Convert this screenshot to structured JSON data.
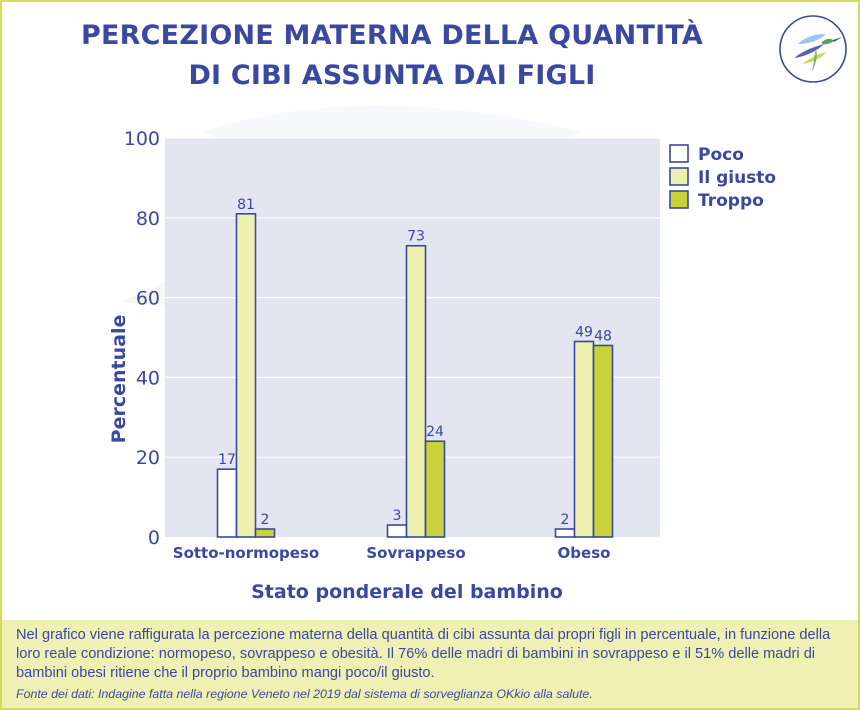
{
  "title": {
    "line1": "PERCEZIONE MATERNA DELLA QUANTITÀ",
    "line2": "DI CIBI ASSUNTA DAI FIGLI"
  },
  "colors": {
    "title": "#3b48a0",
    "frame": "#d4dc5a",
    "plot_bg": "#e3e5f1",
    "poco": "#ffffff",
    "il_giusto": "#eef0b0",
    "troppo": "#c9d13b",
    "bar_stroke": "#3b48a0",
    "footer_bg": "#eef0b4"
  },
  "chart_data": {
    "type": "bar",
    "title": "",
    "xlabel": "Stato ponderale del bambino",
    "ylabel": "Percentuale",
    "categories": [
      "Sotto-normopeso",
      "Sovrappeso",
      "Obeso"
    ],
    "series": [
      {
        "name": "Poco",
        "values": [
          17,
          3,
          2
        ]
      },
      {
        "name": "Il giusto",
        "values": [
          81,
          73,
          49
        ]
      },
      {
        "name": "Troppo",
        "values": [
          2,
          24,
          48
        ]
      }
    ],
    "ylim": [
      0,
      100
    ],
    "yticks": [
      0,
      20,
      40,
      60,
      80,
      100
    ],
    "grid": true,
    "legend_position": "top-right"
  },
  "footer": {
    "note": "Nel grafico viene raffigurata la percezione materna della quantità di cibi assunta dai propri figli in percentuale, in funzione della loro reale condizione: normopeso, sovrappeso e obesità. Il 76% delle madri di bambini in sovrappeso e il 51% delle madri di bambini obesi ritiene che il proprio bambino mangi poco/il giusto.",
    "source": "Fonte dei dati: Indagine fatta nella regione Veneto nel 2019 dal sistema di sorveglianza OKkio alla salute."
  }
}
